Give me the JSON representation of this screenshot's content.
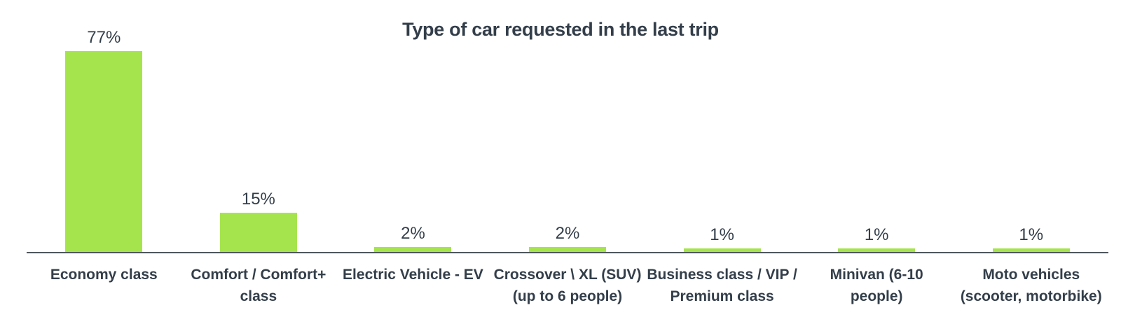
{
  "chart_data": {
    "type": "bar",
    "title": "Type of car requested in the last trip",
    "categories": [
      "Economy class",
      "Comfort / Comfort+ class",
      "Electric Vehicle - EV",
      "Crossover \\ XL (SUV) (up to 6 people)",
      "Business class / VIP / Premium class",
      "Minivan (6-10 people)",
      "Moto vehicles (scooter, motorbike)"
    ],
    "category_labels": [
      "Economy class",
      "Comfort / Comfort+\nclass",
      "Electric Vehicle - EV",
      "Crossover \\ XL (SUV)\n(up to 6 people)",
      "Business class / VIP /\nPremium class",
      "Minivan (6-10\npeople)",
      "Moto vehicles\n(scooter, motorbike)"
    ],
    "values": [
      77,
      15,
      2,
      2,
      1,
      1,
      1
    ],
    "value_labels": [
      "77%",
      "15%",
      "2%",
      "2%",
      "1%",
      "1%",
      "1%"
    ],
    "unit": "%",
    "ylim": [
      0,
      80
    ],
    "grid": false,
    "legend": false,
    "data_labels_position": "above-bar",
    "title_position": "top-center",
    "bar_color": "#A6E44E",
    "axis_color": "#50575E",
    "text_color": "#333E4A",
    "background_color": "#FFFFFF"
  }
}
